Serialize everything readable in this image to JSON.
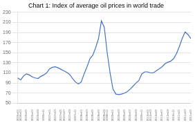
{
  "chart_data": {
    "type": "line",
    "title": "Chart 1: Index of average oil prices in world trade",
    "color": "#4472C4",
    "grid": true,
    "ylim": [
      50,
      230
    ],
    "yticks": [
      50,
      70,
      90,
      110,
      130,
      150,
      170,
      190,
      210,
      230
    ],
    "categories": [
      "2006m01",
      "2006m03",
      null,
      "2006m05",
      null,
      "2006m07",
      null,
      "2006m09",
      null,
      "2006m11",
      null,
      "2007m01",
      null,
      "2007m03",
      null,
      "2007m05",
      "2007m07",
      null,
      "2007m09",
      null,
      "2007m11",
      null,
      "2008m01",
      null,
      "2008m03",
      null,
      "2008m05",
      null,
      "2008m07",
      null,
      "2008m09",
      "2008m11",
      null,
      "2009m01",
      null,
      "2009m03",
      null,
      "2009m05",
      null,
      "2009m07",
      null,
      "2009m09",
      null,
      "2009m11",
      null,
      "2010m01",
      "2010m03",
      null,
      "2010m05",
      null,
      "2010m07",
      null,
      "2010m09",
      null,
      "2010m11",
      null,
      "2011m01",
      null,
      "2011m03",
      null,
      "2011m05"
    ],
    "values": [
      100,
      96,
      104,
      108,
      106,
      102,
      100,
      99,
      103,
      106,
      110,
      118,
      121,
      122,
      120,
      117,
      114,
      111,
      107,
      99,
      92,
      88,
      92,
      108,
      122,
      138,
      145,
      160,
      178,
      213,
      200,
      150,
      110,
      78,
      68,
      67,
      68,
      70,
      73,
      78,
      84,
      90,
      95,
      108,
      112,
      112,
      110,
      110,
      114,
      118,
      122,
      128,
      131,
      133,
      138,
      148,
      162,
      178,
      191,
      186,
      178
    ]
  }
}
